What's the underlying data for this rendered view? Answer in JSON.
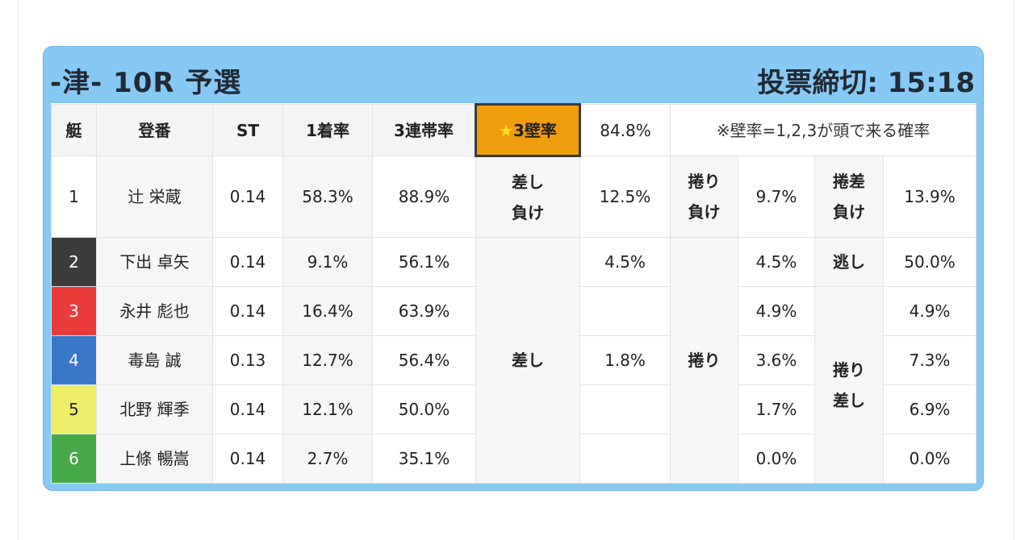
{
  "header": {
    "title": "-津- 10R 予選",
    "deadline": "投票締切: 15:18"
  },
  "columns": {
    "boat": "艇",
    "name": "登番",
    "st": "ST",
    "win": "1着率",
    "top3": "3連帯率",
    "star_label": "3壁率",
    "star_value": "84.8%",
    "note": "※壁率=1,2,3が頭で来る確率"
  },
  "rows": [
    {
      "boat": "1",
      "name": "辻 栄蔵",
      "st": "0.14",
      "win": "58.3%",
      "top3": "88.9%"
    },
    {
      "boat": "2",
      "name": "下出 卓矢",
      "st": "0.14",
      "win": "9.1%",
      "top3": "56.1%"
    },
    {
      "boat": "3",
      "name": "永井 彪也",
      "st": "0.14",
      "win": "16.4%",
      "top3": "63.9%"
    },
    {
      "boat": "4",
      "name": "毒島 誠",
      "st": "0.13",
      "win": "12.7%",
      "top3": "56.4%"
    },
    {
      "boat": "5",
      "name": "北野 輝季",
      "st": "0.14",
      "win": "12.1%",
      "top3": "50.0%"
    },
    {
      "boat": "6",
      "name": "上條 暢嵩",
      "st": "0.14",
      "win": "2.7%",
      "top3": "35.1%"
    }
  ],
  "lane_colors": [
    "#ffffff",
    "#3c3c3c",
    "#ea3b3b",
    "#3a76c8",
    "#eded6a",
    "#47a947"
  ],
  "row1_stats": {
    "sashi_make_1": "差し",
    "sashi_make_2": "負け",
    "sashi_make_val": "12.5%",
    "makuri_make_1": "捲り",
    "makuri_make_2": "負け",
    "makuri_make_val": "9.7%",
    "makurisashi_make_1": "捲差",
    "makurisashi_make_2": "負け",
    "makurisashi_make_val": "13.9%"
  },
  "lower_stats": {
    "sashi_label": "差し",
    "sashi_vals": [
      "4.5%",
      "",
      "1.8%",
      "",
      ""
    ],
    "makuri_label": "捲り",
    "makuri_vals": [
      "4.5%",
      "4.9%",
      "3.6%",
      "1.7%",
      "0.0%"
    ],
    "nige_label": "逃し",
    "nige_val": "50.0%",
    "makurisashi_label_1": "捲り",
    "makurisashi_label_2": "差し",
    "makurisashi_vals": [
      "4.9%",
      "7.3%",
      "6.9%",
      "0.0%"
    ]
  },
  "star_icon": "star-icon"
}
